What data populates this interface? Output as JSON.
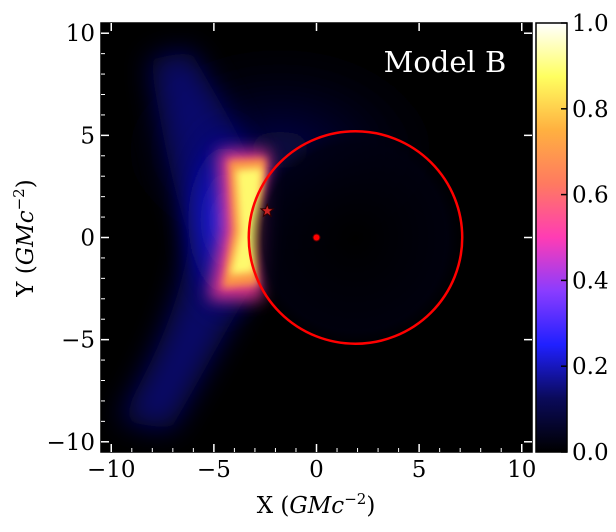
{
  "chart_data": {
    "type": "heatmap",
    "annotation": "Model B",
    "xlabel": {
      "prefix": "X (",
      "unit": "GMc",
      "exponent": "−2",
      "suffix": ")"
    },
    "ylabel": {
      "prefix": "Y (",
      "unit": "GMc",
      "exponent": "−2",
      "suffix": ")"
    },
    "xlim": [
      -10.5,
      10.5
    ],
    "ylim": [
      -10.5,
      10.5
    ],
    "xticks": [
      {
        "value": -10,
        "label": "−10"
      },
      {
        "value": -5,
        "label": "−5"
      },
      {
        "value": 0,
        "label": "0"
      },
      {
        "value": 5,
        "label": "5"
      },
      {
        "value": 10,
        "label": "10"
      }
    ],
    "yticks": [
      {
        "value": -10,
        "label": "−10"
      },
      {
        "value": -5,
        "label": "−5"
      },
      {
        "value": 0,
        "label": "0"
      },
      {
        "value": 5,
        "label": "5"
      },
      {
        "value": 10,
        "label": "10"
      }
    ],
    "colorbar": {
      "range": [
        0.0,
        1.0
      ],
      "ticks": [
        {
          "value": 0.0,
          "label": "0.0"
        },
        {
          "value": 0.2,
          "label": "0.2"
        },
        {
          "value": 0.4,
          "label": "0.4"
        },
        {
          "value": 0.6,
          "label": "0.6"
        },
        {
          "value": 0.8,
          "label": "0.8"
        },
        {
          "value": 1.0,
          "label": "1.0"
        }
      ],
      "colormap": [
        "#000000",
        "#0a0a5a",
        "#2020ff",
        "#8a3cff",
        "#ff3cb4",
        "#ff7a60",
        "#ffb040",
        "#ffff60",
        "#ffffff"
      ]
    },
    "circle": {
      "center": [
        1.9,
        0.0
      ],
      "radius": 5.2,
      "color": "#ff0000"
    },
    "center_marker": {
      "x": 0,
      "y": 0,
      "color": "#ff0000"
    },
    "star_marker": {
      "x": -2.4,
      "y": 1.3,
      "color": "#cc2222"
    }
  }
}
